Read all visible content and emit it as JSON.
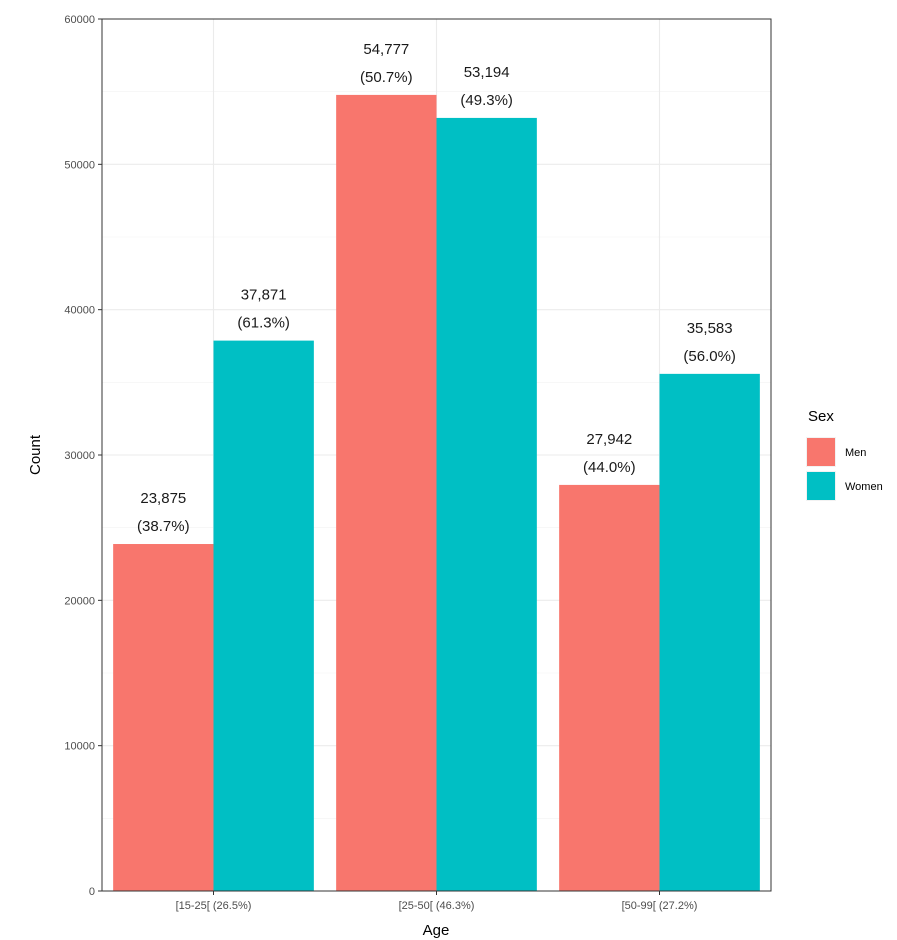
{
  "chart_data": {
    "type": "bar",
    "xlabel": "Age",
    "ylabel": "Count",
    "ylim": [
      0,
      60000
    ],
    "yticks": [
      0,
      10000,
      20000,
      30000,
      40000,
      50000,
      60000
    ],
    "categories": [
      "[15-25[ (26.5%)",
      "[25-50[ (46.3%)",
      "[50-99[ (27.2%)"
    ],
    "series": [
      {
        "name": "Men",
        "color": "#F8766D",
        "values": [
          23875,
          54777,
          27942
        ],
        "labels": [
          [
            "23,875",
            "(38.7%)"
          ],
          [
            "54,777",
            "(50.7%)"
          ],
          [
            "27,942",
            "(44.0%)"
          ]
        ]
      },
      {
        "name": "Women",
        "color": "#00BFC4",
        "values": [
          37871,
          53194,
          35583
        ],
        "labels": [
          [
            "37,871",
            "(61.3%)"
          ],
          [
            "53,194",
            "(49.3%)"
          ],
          [
            "35,583",
            "(56.0%)"
          ]
        ]
      }
    ],
    "legend": {
      "title": "Sex",
      "position": "right"
    },
    "grid": true
  }
}
